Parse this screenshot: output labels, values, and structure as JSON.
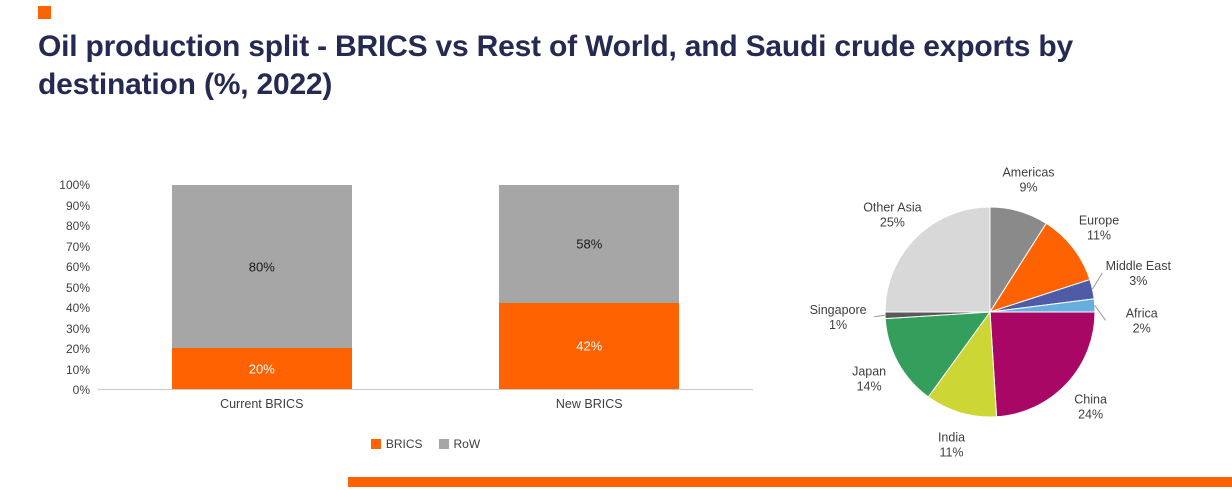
{
  "page": {
    "title": "Oil production split - BRICS vs Rest of World, and Saudi crude exports by destination (%, 2022)",
    "accent_color": "#FF6200",
    "title_color": "#252A52"
  },
  "chart_data": [
    {
      "type": "bar",
      "stacked": true,
      "categories": [
        "Current BRICS",
        "New BRICS"
      ],
      "series": [
        {
          "name": "BRICS",
          "values": [
            20,
            42
          ],
          "color": "#FF6200",
          "label_color": "#FFFFFF"
        },
        {
          "name": "RoW",
          "values": [
            80,
            58
          ],
          "color": "#A6A6A6",
          "label_color": "#1A1A1A"
        }
      ],
      "ylim": [
        0,
        100
      ],
      "ytick_labels": [
        "0%",
        "10%",
        "20%",
        "30%",
        "40%",
        "50%",
        "60%",
        "70%",
        "80%",
        "90%",
        "100%"
      ],
      "grid": false,
      "legend_position": "bottom"
    },
    {
      "type": "pie",
      "start_angle": "top",
      "direction": "clockwise",
      "slices": [
        {
          "label": "Americas",
          "value": 9,
          "pct_label": "9%",
          "color": "#8A8A8A"
        },
        {
          "label": "Europe",
          "value": 11,
          "pct_label": "11%",
          "color": "#FF6200"
        },
        {
          "label": "Middle East",
          "value": 3,
          "pct_label": "3%",
          "color": "#4F5BA6",
          "label_dy": -6
        },
        {
          "label": "Africa",
          "value": 2,
          "pct_label": "2%",
          "color": "#66AEDD",
          "label_dy": 18
        },
        {
          "label": "China",
          "value": 24,
          "pct_label": "24%",
          "color": "#A80766"
        },
        {
          "label": "India",
          "value": 11,
          "pct_label": "11%",
          "color": "#CCD634"
        },
        {
          "label": "Japan",
          "value": 14,
          "pct_label": "14%",
          "color": "#349E5C"
        },
        {
          "label": "Singapore",
          "value": 1,
          "pct_label": "1%",
          "color": "#595959"
        },
        {
          "label": "Other Asia",
          "value": 25,
          "pct_label": "25%",
          "color": "#D8D8D8"
        }
      ]
    }
  ]
}
